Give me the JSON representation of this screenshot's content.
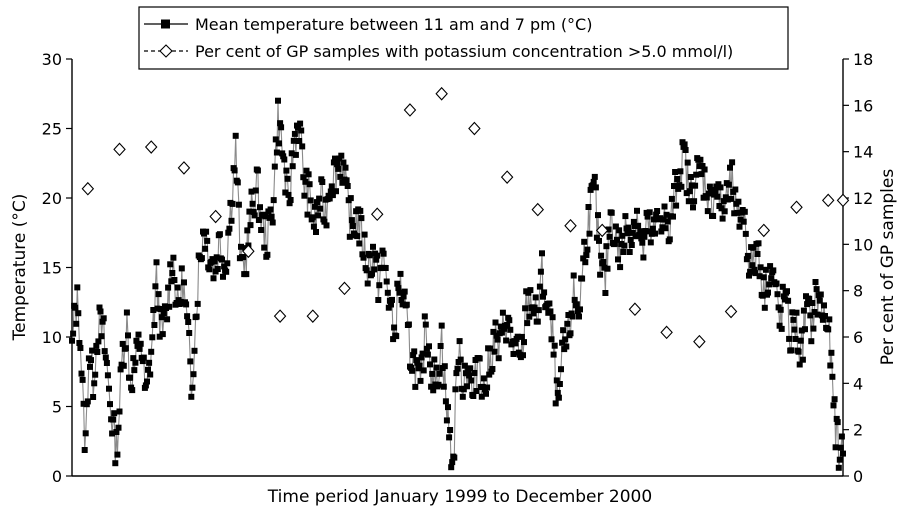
{
  "chart_data": {
    "type": "line",
    "title": "",
    "xlabel": "Time period January 1999 to December 2000",
    "ylabel_left": "Temperature (°C)",
    "ylabel_right": "Per cent of GP samples",
    "ylim_left": [
      0,
      30
    ],
    "ylim_right": [
      0,
      18
    ],
    "yticks_left": [
      "0",
      "5",
      "10",
      "15",
      "20",
      "25",
      "30"
    ],
    "yticks_right": [
      "0",
      "2",
      "4",
      "6",
      "8",
      "10",
      "12",
      "14",
      "16",
      "18"
    ],
    "xlim_days": [
      0,
      730
    ],
    "grid": false,
    "legend_position": "top-center",
    "series": [
      {
        "name": "Mean temperature between 11 am and 7 pm (°C)",
        "axis": "left",
        "marker": "filled-square",
        "color": "#000000",
        "keypoints": [
          [
            0,
            9
          ],
          [
            3,
            12
          ],
          [
            6,
            12.5
          ],
          [
            9,
            8
          ],
          [
            11,
            4
          ],
          [
            13,
            2.3
          ],
          [
            16,
            9
          ],
          [
            20,
            7
          ],
          [
            25,
            11
          ],
          [
            30,
            10
          ],
          [
            34,
            7
          ],
          [
            38,
            4
          ],
          [
            42,
            2
          ],
          [
            45,
            5
          ],
          [
            48,
            9
          ],
          [
            52,
            11
          ],
          [
            55,
            7
          ],
          [
            60,
            8
          ],
          [
            65,
            10
          ],
          [
            70,
            5.5
          ],
          [
            75,
            9
          ],
          [
            80,
            14
          ],
          [
            85,
            10
          ],
          [
            90,
            12
          ],
          [
            95,
            16
          ],
          [
            100,
            12
          ],
          [
            105,
            14
          ],
          [
            110,
            10
          ],
          [
            113,
            6.5
          ],
          [
            116,
            10
          ],
          [
            120,
            15
          ],
          [
            125,
            18
          ],
          [
            130,
            16
          ],
          [
            135,
            15
          ],
          [
            140,
            17
          ],
          [
            145,
            15
          ],
          [
            150,
            19
          ],
          [
            155,
            23.5
          ],
          [
            160,
            15
          ],
          [
            165,
            16
          ],
          [
            170,
            19
          ],
          [
            175,
            21
          ],
          [
            180,
            18
          ],
          [
            185,
            17
          ],
          [
            190,
            19.5
          ],
          [
            195,
            26
          ],
          [
            200,
            23
          ],
          [
            205,
            19
          ],
          [
            210,
            24
          ],
          [
            215,
            25.5
          ],
          [
            220,
            21
          ],
          [
            225,
            20
          ],
          [
            230,
            18
          ],
          [
            235,
            20
          ],
          [
            240,
            19
          ],
          [
            245,
            21.5
          ],
          [
            250,
            22
          ],
          [
            255,
            23
          ],
          [
            260,
            20
          ],
          [
            265,
            18
          ],
          [
            270,
            18.5
          ],
          [
            275,
            17
          ],
          [
            280,
            15
          ],
          [
            285,
            16
          ],
          [
            290,
            14
          ],
          [
            295,
            15.5
          ],
          [
            300,
            13
          ],
          [
            305,
            10
          ],
          [
            310,
            14
          ],
          [
            315,
            12
          ],
          [
            320,
            9
          ],
          [
            325,
            8
          ],
          [
            330,
            6
          ],
          [
            335,
            11
          ],
          [
            340,
            8
          ],
          [
            345,
            6.5
          ],
          [
            350,
            10
          ],
          [
            355,
            4.5
          ],
          [
            358,
            2.5
          ],
          [
            361,
            0.7
          ],
          [
            365,
            9
          ],
          [
            370,
            7
          ],
          [
            375,
            8
          ],
          [
            380,
            5.5
          ],
          [
            385,
            9
          ],
          [
            390,
            6
          ],
          [
            395,
            8
          ],
          [
            400,
            10
          ],
          [
            405,
            9
          ],
          [
            410,
            11.5
          ],
          [
            415,
            10
          ],
          [
            420,
            9
          ],
          [
            425,
            8
          ],
          [
            430,
            12
          ],
          [
            435,
            13
          ],
          [
            440,
            11
          ],
          [
            445,
            14.5
          ],
          [
            450,
            12
          ],
          [
            455,
            10
          ],
          [
            460,
            4.5
          ],
          [
            465,
            9
          ],
          [
            470,
            10
          ],
          [
            475,
            13
          ],
          [
            480,
            12
          ],
          [
            485,
            16
          ],
          [
            490,
            19
          ],
          [
            495,
            20.5
          ],
          [
            500,
            15
          ],
          [
            505,
            14
          ],
          [
            510,
            19
          ],
          [
            515,
            17
          ],
          [
            520,
            16
          ],
          [
            525,
            18
          ],
          [
            530,
            17.5
          ],
          [
            535,
            19
          ],
          [
            540,
            16
          ],
          [
            545,
            18
          ],
          [
            550,
            17
          ],
          [
            555,
            18.5
          ],
          [
            560,
            19
          ],
          [
            565,
            17
          ],
          [
            570,
            20
          ],
          [
            575,
            22
          ],
          [
            580,
            23
          ],
          [
            585,
            20
          ],
          [
            590,
            21.5
          ],
          [
            595,
            22
          ],
          [
            600,
            21
          ],
          [
            605,
            19.5
          ],
          [
            610,
            21
          ],
          [
            615,
            19
          ],
          [
            620,
            20
          ],
          [
            625,
            21
          ],
          [
            630,
            18
          ],
          [
            635,
            19.5
          ],
          [
            640,
            16
          ],
          [
            645,
            15
          ],
          [
            650,
            16.5
          ],
          [
            655,
            13
          ],
          [
            660,
            15
          ],
          [
            665,
            14
          ],
          [
            670,
            11
          ],
          [
            675,
            13
          ],
          [
            680,
            10
          ],
          [
            685,
            11
          ],
          [
            690,
            8.5
          ],
          [
            695,
            12
          ],
          [
            700,
            11
          ],
          [
            705,
            13
          ],
          [
            710,
            12
          ],
          [
            715,
            11
          ],
          [
            718,
            9
          ],
          [
            721,
            5
          ],
          [
            724,
            3
          ],
          [
            727,
            1
          ],
          [
            730,
            3
          ]
        ]
      },
      {
        "name": "Per cent of GP samples with potassium concentration >5.0 mmol/l)",
        "axis": "right",
        "marker": "open-diamond",
        "color": "#000000",
        "x_days": [
          15,
          45,
          75,
          106,
          136,
          167,
          197,
          228,
          258,
          289,
          320,
          350,
          381,
          412,
          441,
          472,
          502,
          533,
          563,
          594,
          624,
          655,
          686,
          716,
          730
        ],
        "values": [
          12.4,
          14.1,
          14.2,
          13.3,
          11.2,
          9.7,
          6.9,
          6.9,
          8.1,
          11.3,
          15.8,
          16.5,
          15.0,
          12.9,
          11.5,
          10.8,
          10.6,
          7.2,
          6.2,
          5.8,
          7.1,
          10.6,
          11.6,
          11.9,
          11.9
        ]
      }
    ]
  }
}
